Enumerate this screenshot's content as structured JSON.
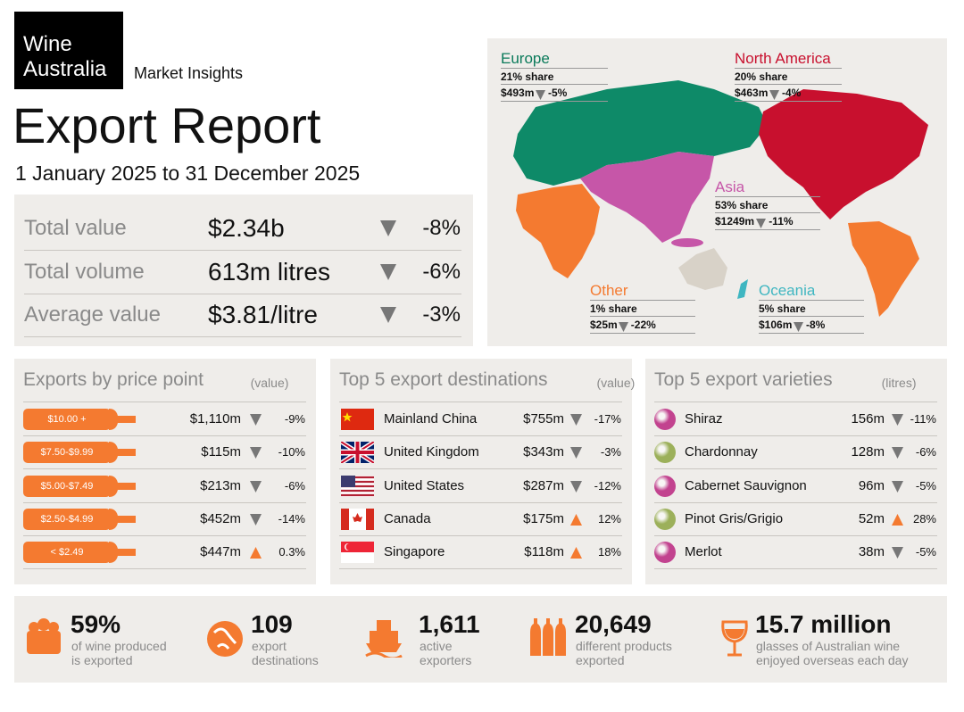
{
  "header": {
    "logo": [
      "Wine",
      "Australia"
    ],
    "tagline": "Market Insights",
    "title": "Export Report",
    "period": "1 January 2025 to 31 December 2025"
  },
  "summary": [
    {
      "label": "Total value",
      "value": "$2.34b",
      "change": "-8%"
    },
    {
      "label": "Total volume",
      "value": "613m litres",
      "change": "-6%"
    },
    {
      "label": "Average value",
      "value": "$3.81/litre",
      "change": "-3%"
    }
  ],
  "map": {
    "regions": [
      {
        "name": "Europe",
        "share": "21% share",
        "value": "$493m",
        "change": "-5%"
      },
      {
        "name": "North America",
        "share": "20% share",
        "value": "$463m",
        "change": "-4%"
      },
      {
        "name": "Asia",
        "share": "53% share",
        "value": "$1249m",
        "change": "-11%"
      },
      {
        "name": "Other",
        "share": "1% share",
        "value": "$25m",
        "change": "-22%"
      },
      {
        "name": "Oceania",
        "share": "5% share",
        "value": "$106m",
        "change": "-8%"
      }
    ]
  },
  "price_points": {
    "title": "Exports by price point",
    "qualifier": "(value)",
    "rows": [
      {
        "label": "$10.00 +",
        "value": "$1,110m",
        "change": "-9%"
      },
      {
        "label": "$7.50-$9.99",
        "value": "$115m",
        "change": "-10%"
      },
      {
        "label": "$5.00-$7.49",
        "value": "$213m",
        "change": "-6%"
      },
      {
        "label": "$2.50-$4.99",
        "value": "$452m",
        "change": "-14%"
      },
      {
        "label": "< $2.49",
        "value": "$447m",
        "change": "0.3%"
      }
    ]
  },
  "destinations": {
    "title": "Top 5 export destinations",
    "qualifier": "(value)",
    "rows": [
      {
        "label": "Mainland China",
        "value": "$755m",
        "change": "-17%"
      },
      {
        "label": "United Kingdom",
        "value": "$343m",
        "change": "-3%"
      },
      {
        "label": "United States",
        "value": "$287m",
        "change": "-12%"
      },
      {
        "label": "Canada",
        "value": "$175m",
        "change": "12%"
      },
      {
        "label": "Singapore",
        "value": "$118m",
        "change": "18%"
      }
    ]
  },
  "varieties": {
    "title": "Top 5 export varieties",
    "qualifier": "(litres)",
    "rows": [
      {
        "label": "Shiraz",
        "value": "156m",
        "change": "-11%"
      },
      {
        "label": "Chardonnay",
        "value": "128m",
        "change": "-6%"
      },
      {
        "label": "Cabernet Sauvignon",
        "value": "96m",
        "change": "-5%"
      },
      {
        "label": "Pinot Gris/Grigio",
        "value": "52m",
        "change": "28%"
      },
      {
        "label": "Merlot",
        "value": "38m",
        "change": "-5%"
      }
    ]
  },
  "stats": [
    {
      "number": "59%",
      "lines": [
        "of wine produced",
        "is exported"
      ]
    },
    {
      "number": "109",
      "lines": [
        "export",
        "destinations"
      ]
    },
    {
      "number": "1,611",
      "lines": [
        "active",
        "exporters"
      ]
    },
    {
      "number": "20,649",
      "lines": [
        "different products",
        "exported"
      ]
    },
    {
      "number": "15.7 million",
      "lines": [
        "glasses of Australian wine",
        "enjoyed overseas each day"
      ]
    }
  ]
}
